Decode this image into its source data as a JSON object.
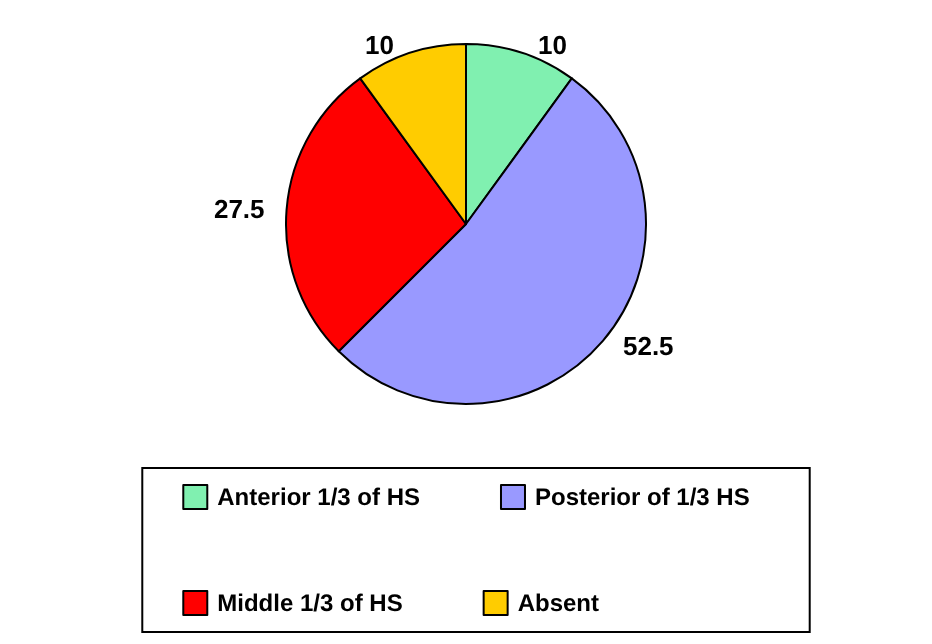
{
  "chart_data": {
    "type": "pie",
    "categories": [
      "Anterior 1/3 of HS",
      "Posterior of 1/3 HS",
      "Middle 1/3 of HS",
      "Absent"
    ],
    "values": [
      10,
      52.5,
      27.5,
      10
    ],
    "colors": [
      "#80f0b0",
      "#9999ff",
      "#ff0000",
      "#ffcc00"
    ],
    "data_labels": true,
    "legend": "bottom"
  }
}
